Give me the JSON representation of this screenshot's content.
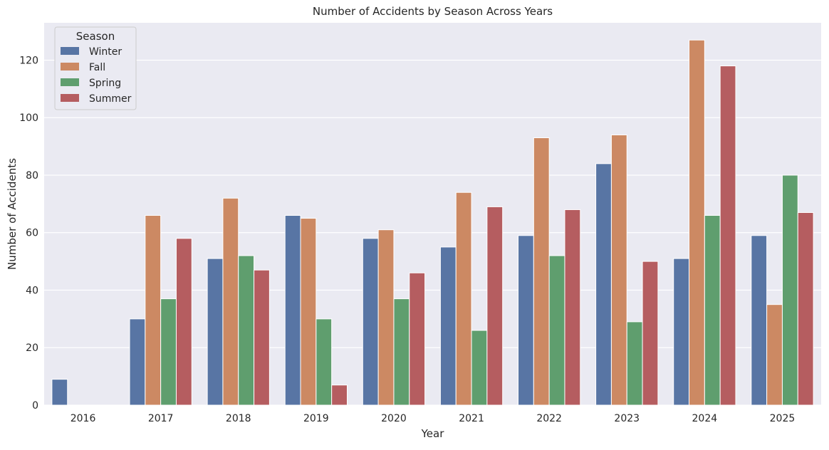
{
  "chart_data": {
    "type": "bar",
    "title": "Number of Accidents by Season Across Years",
    "xlabel": "Year",
    "ylabel": "Number of Accidents",
    "categories": [
      "2016",
      "2017",
      "2018",
      "2019",
      "2020",
      "2021",
      "2022",
      "2023",
      "2024",
      "2025"
    ],
    "series": [
      {
        "name": "Winter",
        "color": "#5875a4",
        "values": [
          9,
          30,
          51,
          66,
          58,
          55,
          59,
          84,
          51,
          59
        ]
      },
      {
        "name": "Fall",
        "color": "#cc8963",
        "values": [
          0,
          66,
          72,
          65,
          61,
          74,
          93,
          94,
          127,
          35
        ]
      },
      {
        "name": "Spring",
        "color": "#5f9e6e",
        "values": [
          0,
          37,
          52,
          30,
          37,
          26,
          52,
          29,
          66,
          80
        ]
      },
      {
        "name": "Summer",
        "color": "#b55d60",
        "values": [
          0,
          58,
          47,
          7,
          46,
          69,
          68,
          50,
          118,
          67
        ]
      }
    ],
    "ylim": [
      0,
      133
    ],
    "yticks": [
      0,
      20,
      40,
      60,
      80,
      100,
      120
    ],
    "grid": true,
    "legend": {
      "title": "Season",
      "placement": "top-left"
    }
  }
}
